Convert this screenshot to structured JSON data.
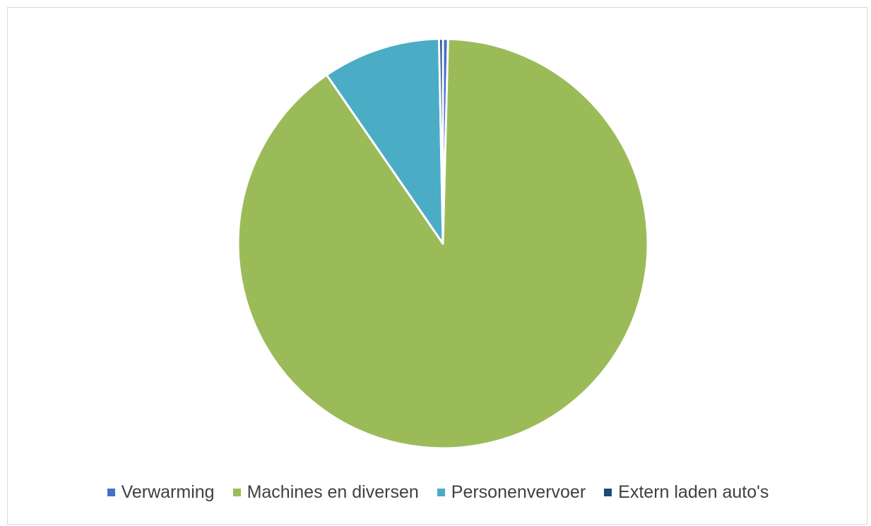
{
  "chart_data": {
    "type": "pie",
    "title": "",
    "categories": [
      "Verwarming",
      "Machines en diversen",
      "Personenvervoer",
      "Extern laden auto's"
    ],
    "values": [
      0.4,
      90.0,
      9.3,
      0.3
    ],
    "unit": "",
    "colors": [
      "#4472C4",
      "#9BBB59",
      "#4BACC6",
      "#1F497D"
    ],
    "start_angle_deg": 0,
    "direction": "clockwise",
    "legend_position": "bottom",
    "slice_border_color": "#ffffff"
  }
}
